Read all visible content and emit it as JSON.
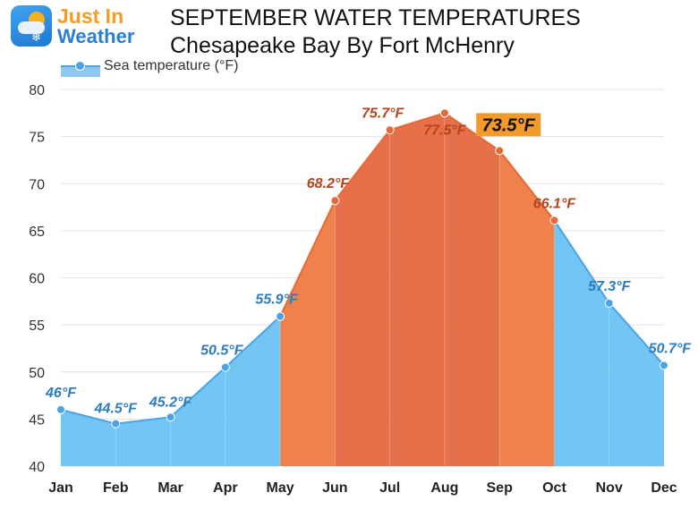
{
  "branding": {
    "logo_line1": "Just In",
    "logo_line2": "Weather"
  },
  "header": {
    "title_line1": "SEPTEMBER WATER TEMPERATURES",
    "title_line2": "Chesapeake Bay By Fort McHenry"
  },
  "colors": {
    "cold": "#6cc3f2",
    "cold_line": "#4aa3e6",
    "warm": "#ee7a42",
    "hot": "#e5683f",
    "warm_line": "#e56a37",
    "cold_label": "#2b7cc0",
    "warm_label": "#b5441d",
    "highlight_bg": "#f39a2a"
  },
  "chart_data": {
    "type": "area",
    "title": "SEPTEMBER WATER TEMPERATURES Chesapeake Bay By Fort McHenry",
    "categories": [
      "Jan",
      "Feb",
      "Mar",
      "Apr",
      "May",
      "Jun",
      "Jul",
      "Aug",
      "Sep",
      "Oct",
      "Nov",
      "Dec"
    ],
    "series": [
      {
        "name": "Sea temperature (°F)",
        "values": [
          46,
          44.5,
          45.2,
          50.5,
          55.9,
          68.2,
          75.7,
          77.5,
          73.5,
          66.1,
          57.3,
          50.7
        ]
      }
    ],
    "data_labels": [
      "46°F",
      "44.5°F",
      "45.2°F",
      "50.5°F",
      "55.9°F",
      "68.2°F",
      "75.7°F",
      "77.5°F",
      "73.5°F",
      "66.1°F",
      "57.3°F",
      "50.7°F"
    ],
    "highlight_category": "Sep",
    "warm_months": [
      "May",
      "Jun",
      "Jul",
      "Aug",
      "Sep",
      "Oct"
    ],
    "ylim": [
      40,
      80
    ],
    "yticks": [
      40,
      45,
      50,
      55,
      60,
      65,
      70,
      75,
      80
    ],
    "xlabel": "",
    "ylabel": "",
    "grid": true,
    "legend": "top-left"
  }
}
